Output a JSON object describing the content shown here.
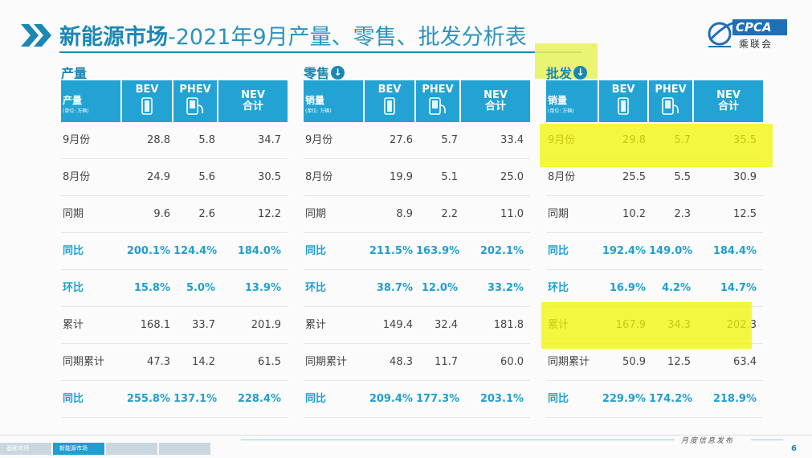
{
  "title_main": "新能源市场",
  "title_sub": "-2021年9月产量、零售、批发分析表",
  "logo": {
    "text": "CPCA",
    "cn": "乘联会",
    "icon": "cpca-globe-icon"
  },
  "colors": {
    "accent": "#23a3d3",
    "title": "#1b87b3",
    "highlight": "#f2f500"
  },
  "header": {
    "bev": "BEV",
    "phev": "PHEV",
    "nev_line1": "NEV",
    "nev_line2": "合计",
    "unit": "(单位: 万辆)"
  },
  "sections": [
    {
      "label": "产量",
      "first_header": "产量",
      "rows": [
        {
          "label": "9月份",
          "bev": "28.8",
          "phev": "5.8",
          "nev": "34.7",
          "ratio": false
        },
        {
          "label": "8月份",
          "bev": "24.9",
          "phev": "5.6",
          "nev": "30.5",
          "ratio": false
        },
        {
          "label": "同期",
          "bev": "9.6",
          "phev": "2.6",
          "nev": "12.2",
          "ratio": false
        },
        {
          "label": "同比",
          "bev": "200.1%",
          "phev": "124.4%",
          "nev": "184.0%",
          "ratio": true
        },
        {
          "label": "环比",
          "bev": "15.8%",
          "phev": "5.0%",
          "nev": "13.9%",
          "ratio": true
        },
        {
          "label": "累计",
          "bev": "168.1",
          "phev": "33.7",
          "nev": "201.9",
          "ratio": false
        },
        {
          "label": "同期累计",
          "bev": "47.3",
          "phev": "14.2",
          "nev": "61.5",
          "ratio": false
        },
        {
          "label": "同比",
          "bev": "255.8%",
          "phev": "137.1%",
          "nev": "228.4%",
          "ratio": true
        }
      ]
    },
    {
      "label": "零售",
      "first_header": "销量",
      "rows": [
        {
          "label": "9月份",
          "bev": "27.6",
          "phev": "5.7",
          "nev": "33.4",
          "ratio": false
        },
        {
          "label": "8月份",
          "bev": "19.9",
          "phev": "5.1",
          "nev": "25.0",
          "ratio": false
        },
        {
          "label": "同期",
          "bev": "8.9",
          "phev": "2.2",
          "nev": "11.0",
          "ratio": false
        },
        {
          "label": "同比",
          "bev": "211.5%",
          "phev": "163.9%",
          "nev": "202.1%",
          "ratio": true
        },
        {
          "label": "环比",
          "bev": "38.7%",
          "phev": "12.0%",
          "nev": "33.2%",
          "ratio": true
        },
        {
          "label": "累计",
          "bev": "149.4",
          "phev": "32.4",
          "nev": "181.8",
          "ratio": false
        },
        {
          "label": "同期累计",
          "bev": "48.3",
          "phev": "11.7",
          "nev": "60.0",
          "ratio": false
        },
        {
          "label": "同比",
          "bev": "209.4%",
          "phev": "177.3%",
          "nev": "203.1%",
          "ratio": true
        }
      ]
    },
    {
      "label": "批发",
      "first_header": "销量",
      "rows": [
        {
          "label": "9月份",
          "bev": "29.8",
          "phev": "5.7",
          "nev": "35.5",
          "ratio": false
        },
        {
          "label": "8月份",
          "bev": "25.5",
          "phev": "5.5",
          "nev": "30.9",
          "ratio": false
        },
        {
          "label": "同期",
          "bev": "10.2",
          "phev": "2.3",
          "nev": "12.5",
          "ratio": false
        },
        {
          "label": "同比",
          "bev": "192.4%",
          "phev": "149.0%",
          "nev": "184.4%",
          "ratio": true
        },
        {
          "label": "环比",
          "bev": "16.9%",
          "phev": "4.2%",
          "nev": "14.7%",
          "ratio": true
        },
        {
          "label": "累计",
          "bev": "167.9",
          "phev": "34.3",
          "nev": "202.3",
          "ratio": false
        },
        {
          "label": "同期累计",
          "bev": "50.9",
          "phev": "12.5",
          "nev": "63.4",
          "ratio": false
        },
        {
          "label": "同比",
          "bev": "229.9%",
          "phev": "174.2%",
          "nev": "218.9%",
          "ratio": true
        }
      ]
    }
  ],
  "footer": {
    "tabs": [
      "基础市场",
      "新能源市场",
      "",
      ""
    ],
    "active_tab": 1,
    "monthly": "月度信息发布",
    "page": "6"
  }
}
